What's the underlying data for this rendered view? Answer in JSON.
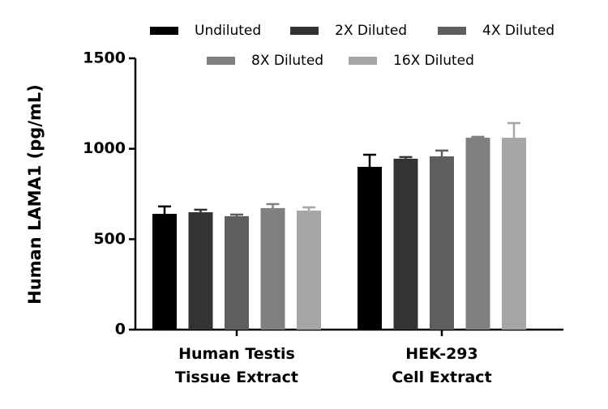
{
  "chart_data": {
    "type": "bar",
    "y_label": "Human LAMA1 (pg/mL)",
    "categories": [
      "Human Testis\nTissue Extract",
      "HEK-293\nCell Extract"
    ],
    "series": [
      {
        "name": "Undiluted",
        "color": "#000000",
        "values": [
          640,
          900
        ],
        "errors": [
          41,
          67
        ]
      },
      {
        "name": "2X Diluted",
        "color": "#333333",
        "values": [
          649,
          945
        ],
        "errors": [
          14,
          9
        ]
      },
      {
        "name": "4X Diluted",
        "color": "#5e5e5e",
        "values": [
          627,
          958
        ],
        "errors": [
          9,
          32
        ]
      },
      {
        "name": "8X Diluted",
        "color": "#808080",
        "values": [
          672,
          1061
        ],
        "errors": [
          22,
          5
        ]
      },
      {
        "name": "16X Diluted",
        "color": "#a6a6a6",
        "values": [
          658,
          1061
        ],
        "errors": [
          18,
          81
        ]
      }
    ],
    "ylim": [
      0,
      1500
    ],
    "yticks": [
      0,
      500,
      1000,
      1500
    ]
  }
}
